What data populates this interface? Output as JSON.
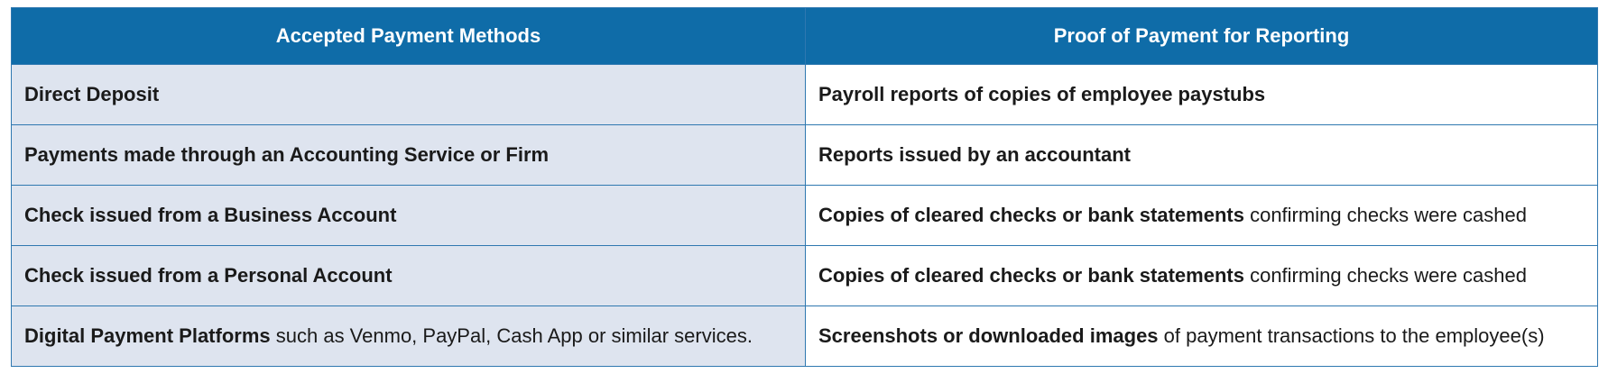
{
  "table": {
    "headers": {
      "methods": "Accepted Payment Methods",
      "proof": "Proof of Payment for Reporting"
    },
    "rows": [
      {
        "method_bold": "Direct Deposit",
        "method_rest": "",
        "proof_bold": "Payroll reports of copies of employee paystubs",
        "proof_rest": ""
      },
      {
        "method_bold": "Payments made through an Accounting Service or Firm",
        "method_rest": "",
        "proof_bold": "Reports issued by an accountant",
        "proof_rest": ""
      },
      {
        "method_bold": "Check issued from a Business Account",
        "method_rest": "",
        "proof_bold": "Copies of cleared checks or bank statements",
        "proof_rest": " confirming checks were cashed"
      },
      {
        "method_bold": "Check issued from a Personal Account",
        "method_rest": "",
        "proof_bold": "Copies of cleared checks or bank statements",
        "proof_rest": " confirming checks were cashed"
      },
      {
        "method_bold": "Digital Payment Platforms",
        "method_rest": " such as Venmo, PayPal, Cash App or similar services.",
        "proof_bold": "Screenshots or downloaded images",
        "proof_rest": " of payment transactions to the employee(s)"
      }
    ]
  },
  "colors": {
    "header_bg": "#0f6ca8",
    "method_col_bg": "#dee4ef",
    "border": "#2f78b0"
  }
}
